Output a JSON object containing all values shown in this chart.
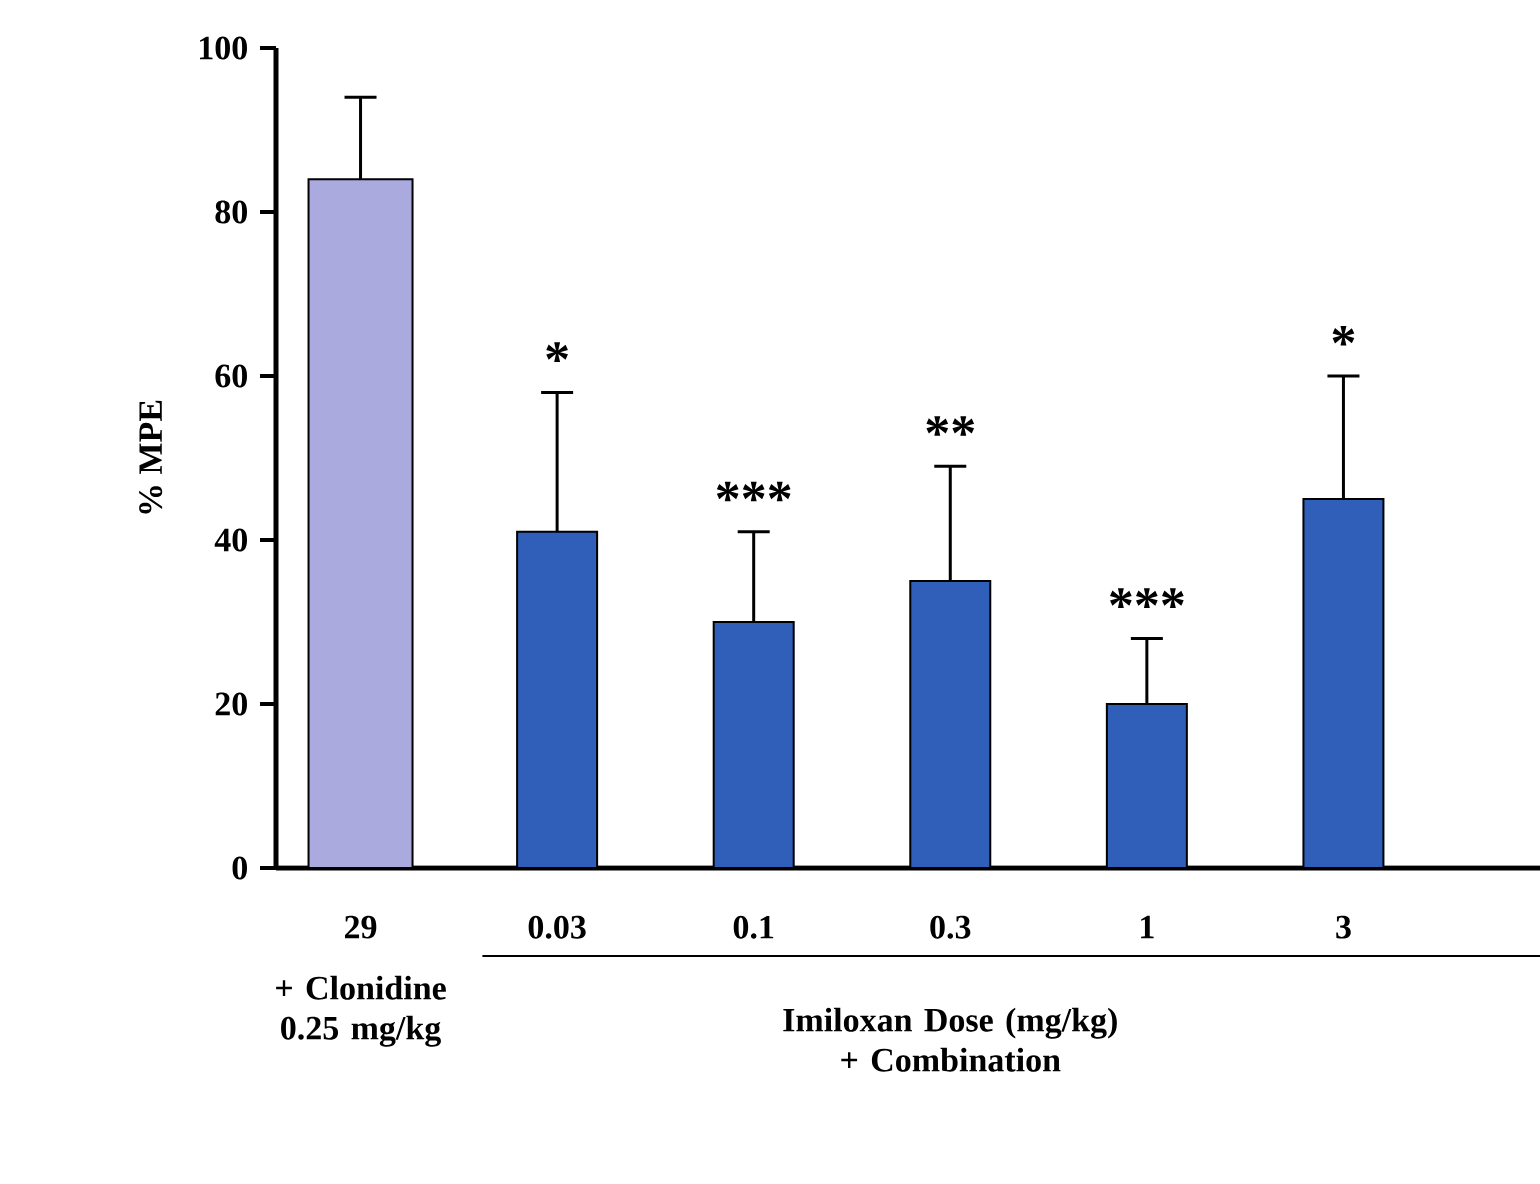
{
  "chart_data": {
    "type": "bar",
    "ylabel": "% MPE",
    "categories": [
      "29",
      "0.03",
      "0.1",
      "0.3",
      "1",
      "3"
    ],
    "values": [
      84,
      41,
      30,
      35,
      20,
      45
    ],
    "colors": [
      "#aaaade",
      "#2f5fb8",
      "#2f5fb8",
      "#2f5fb8",
      "#2f5fb8",
      "#2f5fb8"
    ],
    "errors": [
      [
        84,
        94
      ],
      [
        41,
        58
      ],
      [
        30,
        41
      ],
      [
        35,
        49
      ],
      [
        20,
        28
      ],
      [
        45,
        60
      ]
    ],
    "ylim": [
      0,
      100
    ],
    "yticks": [
      0,
      20,
      40,
      60,
      80,
      100
    ],
    "annotations": [
      "+ Clonidine 0.25 mg/kg",
      "Imiloxan Dose (mg/kg) + Combination",
      {
        "text": "*",
        "x": "0.03",
        "y": 58
      },
      {
        "text": "***",
        "x": "0.1",
        "y": 41
      },
      {
        "text": "**",
        "x": "0.3",
        "y": 49
      },
      {
        "text": "***",
        "x": "1",
        "y": 28
      },
      {
        "text": "*",
        "x": "3",
        "y": 60
      }
    ]
  }
}
